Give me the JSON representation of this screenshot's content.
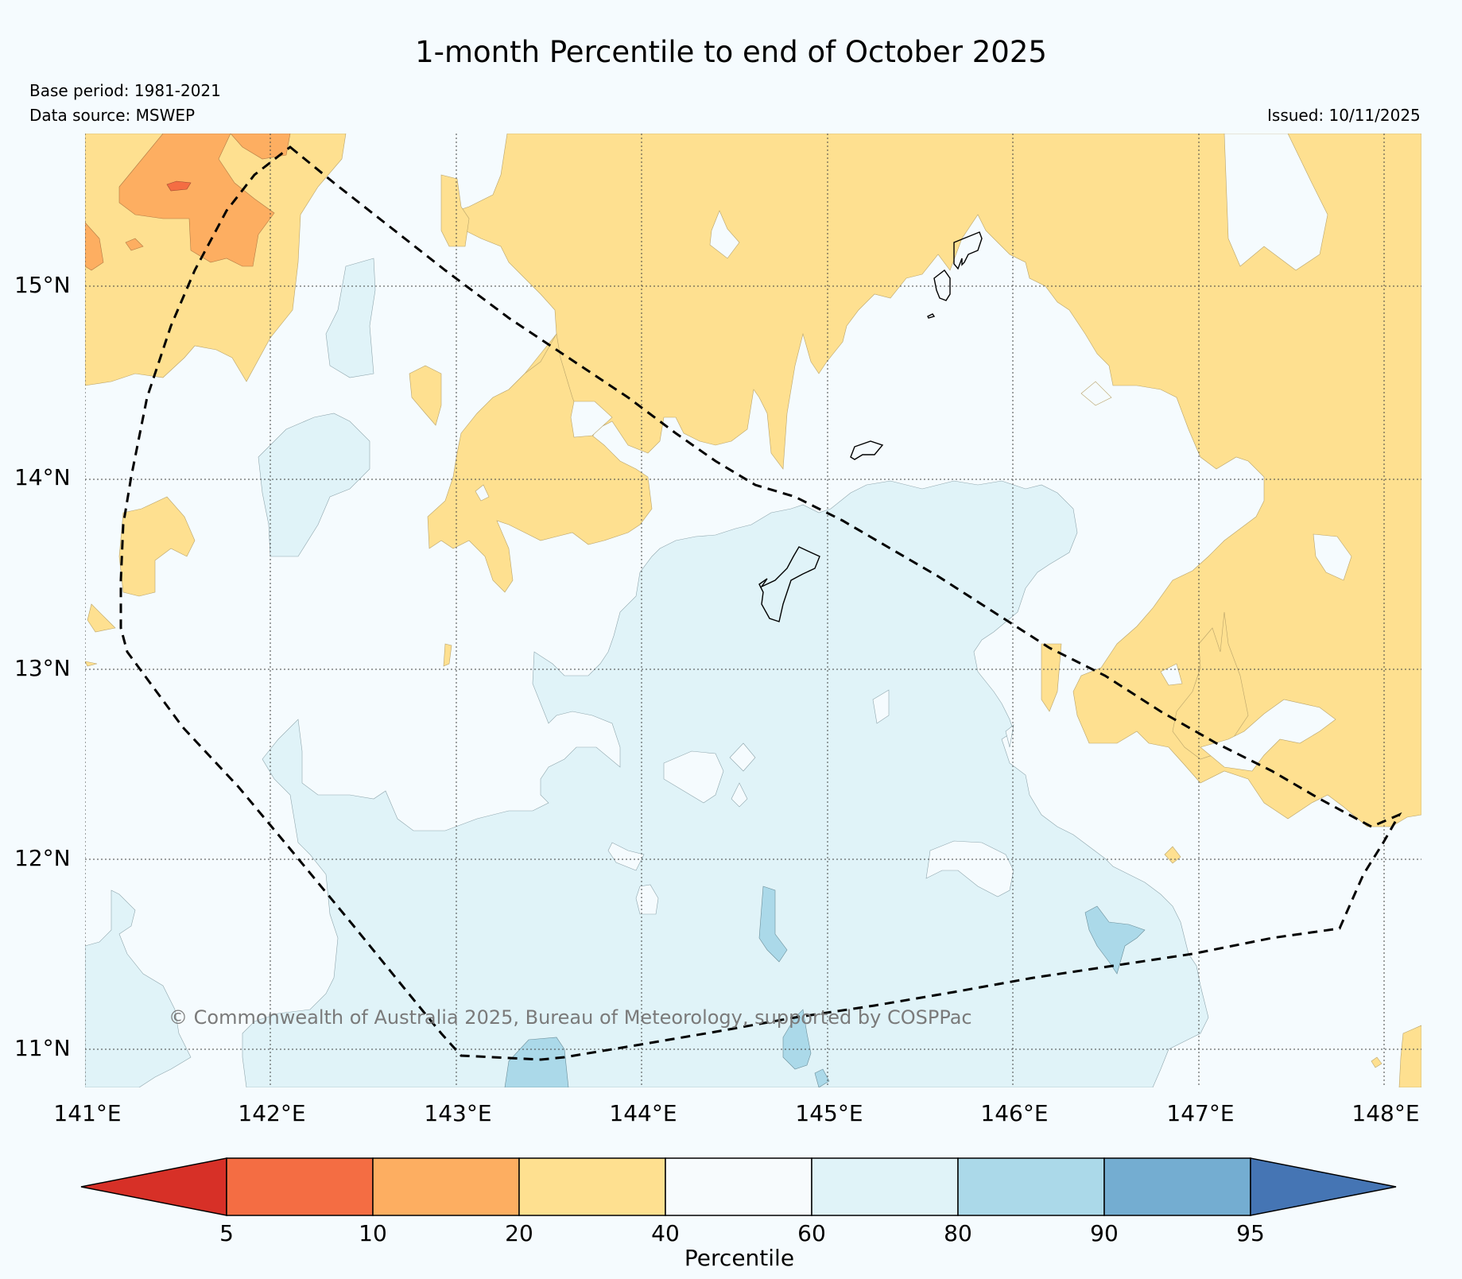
{
  "title": "1-month Percentile to end of October 2025",
  "base_period": "Base period: 1981-2021",
  "data_source": "Data source: MSWEP",
  "issued": "Issued: 10/11/2025",
  "copyright": "© Commonwealth of Australia 2025, Bureau of Meteorology, supported by COSPPac",
  "lat_labels": [
    "15°N",
    "14°N",
    "13°N",
    "12°N",
    "11°N"
  ],
  "lon_labels": [
    "141°E",
    "142°E",
    "143°E",
    "144°E",
    "145°E",
    "146°E",
    "147°E",
    "148°E"
  ],
  "colorbar": {
    "title": "Percentile",
    "ticks": [
      "5",
      "10",
      "20",
      "40",
      "60",
      "80",
      "90",
      "95"
    ],
    "colors": [
      "#d73027",
      "#f46d43",
      "#fdae61",
      "#fee090",
      "#f7fbfd",
      "#e0f3f8",
      "#abd9e9",
      "#74add1",
      "#4575b4"
    ]
  },
  "fill_colors": {
    "background": "#f5fbfe",
    "p10_20": "#fdae61",
    "p05_10": "#f46d43",
    "p20_40": "#fee090",
    "p60_80": "#e0f3f8",
    "p80_90": "#abd9e9"
  }
}
